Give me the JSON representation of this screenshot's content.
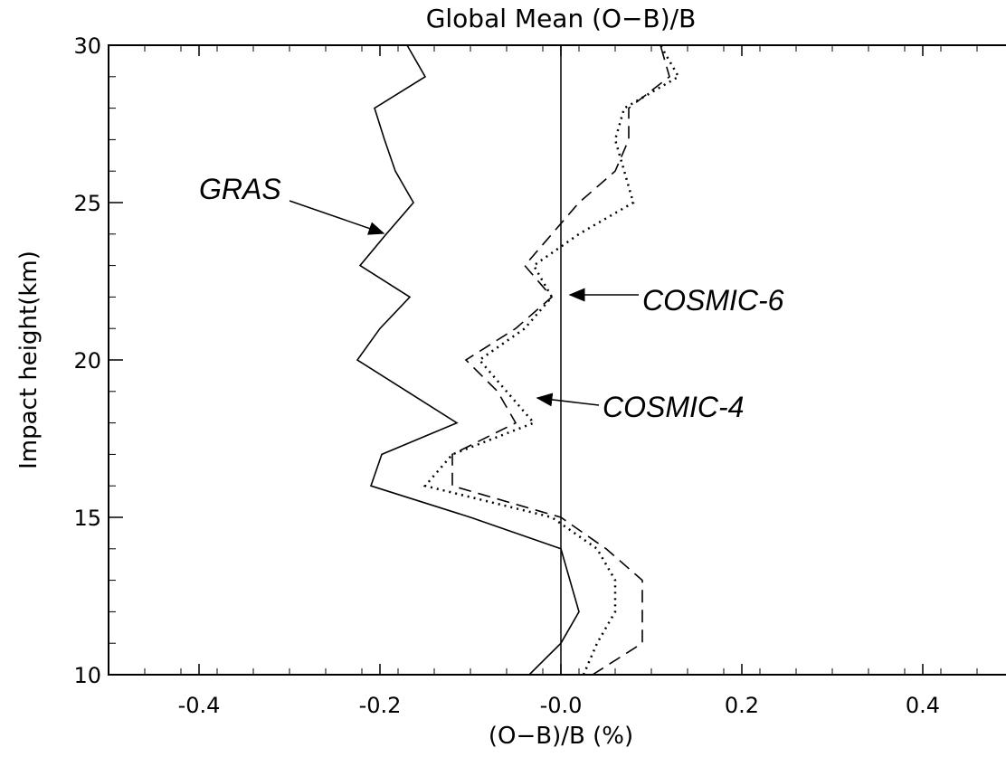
{
  "chart_data": {
    "type": "line",
    "title": "Global Mean (O−B)/B",
    "xlabel": "(O−B)/B (%)",
    "ylabel": "Impact height(km)",
    "heights": [
      10,
      11,
      12,
      13,
      14,
      15,
      16,
      17,
      18,
      19,
      20,
      21,
      22,
      23,
      24,
      25,
      26,
      27,
      28,
      29,
      30
    ],
    "series": [
      {
        "name": "GRAS",
        "color": "#000000",
        "dash": "solid",
        "values": [
          -0.035,
          0.0,
          0.02,
          0.01,
          0.0,
          -0.1,
          -0.21,
          -0.198,
          -0.115,
          -0.17,
          -0.225,
          -0.2,
          -0.167,
          -0.222,
          -0.193,
          -0.163,
          -0.183,
          -0.195,
          -0.206,
          -0.15,
          -0.17
        ]
      },
      {
        "name": "COSMIC-6",
        "color": "#000000",
        "dash": "dashed",
        "values": [
          0.035,
          0.09,
          0.09,
          0.09,
          0.05,
          0.0,
          -0.12,
          -0.12,
          -0.05,
          -0.07,
          -0.105,
          -0.05,
          -0.01,
          -0.04,
          -0.01,
          0.02,
          0.06,
          0.075,
          0.075,
          0.12,
          0.11
        ]
      },
      {
        "name": "COSMIC-4",
        "color": "#000000",
        "dash": "dotted",
        "values": [
          0.025,
          0.04,
          0.06,
          0.06,
          0.04,
          -0.01,
          -0.15,
          -0.12,
          -0.03,
          -0.06,
          -0.09,
          -0.04,
          -0.01,
          -0.03,
          0.02,
          0.08,
          0.07,
          0.06,
          0.07,
          0.13,
          0.11
        ]
      }
    ],
    "xlim": [
      -0.5,
      0.5
    ],
    "xticks": [
      -0.4,
      -0.2,
      {
        "value": 0,
        "label": "-0.0"
      },
      0.2,
      0.4
    ],
    "ylim": [
      10,
      30
    ],
    "yticks": [
      10,
      15,
      20,
      25,
      30
    ],
    "zero_line": true
  }
}
